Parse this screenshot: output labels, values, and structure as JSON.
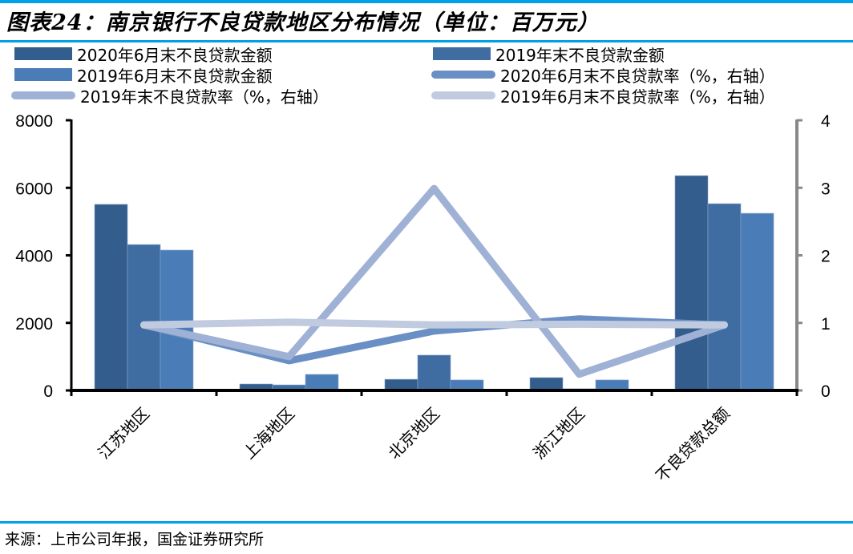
{
  "title": "图表24：南京银行不良贷款地区分布情况（单位：百万元）",
  "source": "来源：上市公司年报，国金证券研究所",
  "legend": [
    {
      "label": "2020年6月末不良贷款金额",
      "type": "bar",
      "color": "#335d8c"
    },
    {
      "label": "2019年末不良贷款金额",
      "type": "bar",
      "color": "#3f6da2"
    },
    {
      "label": "2019年6月末不良贷款金额",
      "type": "bar",
      "color": "#4a7db8"
    },
    {
      "label": "2020年6月末不良贷款率（%，右轴）",
      "type": "line",
      "color": "#6a8fc4"
    },
    {
      "label": "2019年末不良贷款率（%，右轴）",
      "type": "line",
      "color": "#9fb1d4"
    },
    {
      "label": "2019年6月末不良贷款率（%，右轴）",
      "type": "line",
      "color": "#c0cbe0"
    }
  ],
  "axes": {
    "left_ticks": [
      "0",
      "2000",
      "4000",
      "6000",
      "8000"
    ],
    "right_ticks": [
      "0",
      "1",
      "2",
      "3",
      "4"
    ]
  },
  "chart_data": {
    "type": "bar",
    "title": "图表24：南京银行不良贷款地区分布情况（单位：百万元）",
    "xlabel": "",
    "ylabel": "百万元",
    "ylabel_right": "%",
    "ylim": [
      0,
      8000
    ],
    "ylim_right": [
      0,
      4
    ],
    "grid": false,
    "legend_position": "top",
    "categories": [
      "江苏地区",
      "上海地区",
      "北京地区",
      "浙江地区",
      "不良贷款总额"
    ],
    "series": [
      {
        "name": "2020年6月末不良贷款金额",
        "type": "bar",
        "axis": "left",
        "color": "#335d8c",
        "values": [
          5510,
          190,
          330,
          380,
          6360
        ]
      },
      {
        "name": "2019年末不良贷款金额",
        "type": "bar",
        "axis": "left",
        "color": "#3f6da2",
        "values": [
          4320,
          165,
          1045,
          50,
          5530
        ]
      },
      {
        "name": "2019年6月末不良贷款金额",
        "type": "bar",
        "axis": "left",
        "color": "#4a7db8",
        "values": [
          4155,
          475,
          310,
          310,
          5245
        ]
      },
      {
        "name": "2020年6月末不良贷款率（%，右轴）",
        "type": "line",
        "axis": "right",
        "color": "#6a8fc4",
        "values": [
          0.97,
          0.44,
          0.88,
          1.06,
          0.97
        ]
      },
      {
        "name": "2019年末不良贷款率（%，右轴）",
        "type": "line",
        "axis": "right",
        "color": "#9fb1d4",
        "values": [
          0.97,
          0.5,
          2.99,
          0.24,
          0.97
        ]
      },
      {
        "name": "2019年6月末不良贷款率（%，右轴）",
        "type": "line",
        "axis": "right",
        "color": "#c0cbe0",
        "values": [
          0.97,
          1.01,
          0.97,
          0.98,
          0.97
        ]
      }
    ]
  }
}
